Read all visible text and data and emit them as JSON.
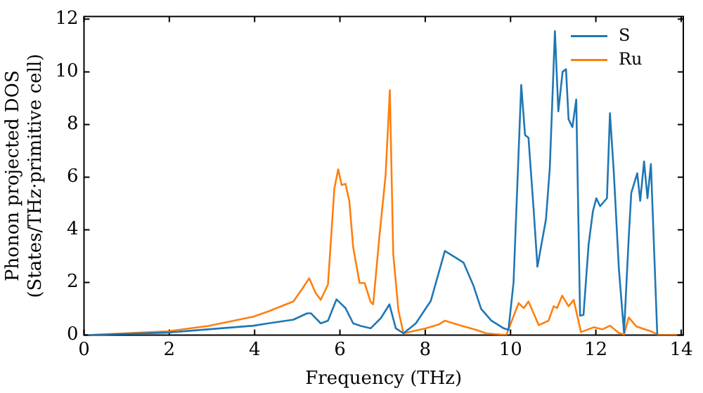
{
  "chart_data": {
    "type": "line",
    "xlabel": "Frequency (THz)",
    "ylabel": "Phonon projected DOS\n(States/THz·primitive cell)",
    "xlim": [
      0,
      14.05
    ],
    "ylim": [
      0,
      12.1
    ],
    "xticks": [
      0,
      2,
      4,
      6,
      8,
      10,
      12,
      14
    ],
    "yticks": [
      0,
      2,
      4,
      6,
      8,
      10,
      12
    ],
    "grid": false,
    "legend": "top right",
    "marker": "none",
    "line_style": "solid",
    "series": [
      {
        "name": "S",
        "color": "#1f77b4",
        "x": [
          0.09,
          1.97,
          3.97,
          4.32,
          4.91,
          5.23,
          5.32,
          5.55,
          5.72,
          5.92,
          6.13,
          6.31,
          6.49,
          6.72,
          6.96,
          7.16,
          7.31,
          7.49,
          7.78,
          8.13,
          8.46,
          8.72,
          8.9,
          9.13,
          9.31,
          9.55,
          9.84,
          9.95,
          10.07,
          10.25,
          10.34,
          10.42,
          10.54,
          10.63,
          10.83,
          10.92,
          11.04,
          11.12,
          11.22,
          11.3,
          11.36,
          11.45,
          11.54,
          11.63,
          11.71,
          11.83,
          11.93,
          12.01,
          12.1,
          12.26,
          12.33,
          12.42,
          12.54,
          12.66,
          12.77,
          12.83,
          12.97,
          13.04,
          13.13,
          13.21,
          13.29,
          13.44
        ],
        "values": [
          0,
          0.1,
          0.36,
          0.45,
          0.59,
          0.83,
          0.83,
          0.45,
          0.55,
          1.36,
          1.03,
          0.45,
          0.35,
          0.26,
          0.65,
          1.17,
          0.26,
          0.07,
          0.45,
          1.3,
          3.2,
          2.94,
          2.75,
          1.88,
          1.0,
          0.55,
          0.26,
          0.2,
          2.0,
          9.5,
          7.6,
          7.5,
          4.8,
          2.6,
          4.4,
          6.35,
          11.55,
          8.5,
          10.0,
          10.1,
          8.2,
          7.9,
          8.95,
          0.74,
          0.77,
          3.45,
          4.7,
          5.2,
          4.9,
          5.2,
          8.43,
          6.2,
          2.5,
          0.1,
          3.7,
          5.4,
          6.15,
          5.1,
          6.6,
          5.2,
          6.5,
          0
        ]
      },
      {
        "name": "Ru",
        "color": "#ff7f0e",
        "x": [
          0.09,
          1.97,
          2.91,
          3.97,
          4.32,
          4.91,
          5.12,
          5.28,
          5.43,
          5.55,
          5.72,
          5.87,
          5.96,
          6.04,
          6.13,
          6.22,
          6.31,
          6.46,
          6.58,
          6.72,
          6.78,
          6.93,
          7.07,
          7.17,
          7.25,
          7.37,
          7.49,
          8.02,
          8.31,
          8.46,
          8.84,
          9.19,
          9.43,
          9.9,
          10.19,
          10.31,
          10.42,
          10.66,
          10.89,
          11.01,
          11.09,
          11.21,
          11.36,
          11.48,
          11.65,
          11.95,
          12.15,
          12.33,
          12.54,
          12.66,
          12.77,
          12.95,
          13.3,
          13.48,
          13.9
        ],
        "values": [
          0,
          0.15,
          0.35,
          0.7,
          0.9,
          1.28,
          1.77,
          2.16,
          1.6,
          1.34,
          1.93,
          5.58,
          6.3,
          5.7,
          5.75,
          5.1,
          3.35,
          1.98,
          1.98,
          1.26,
          1.17,
          3.83,
          6.06,
          9.3,
          3.08,
          0.95,
          0.07,
          0.26,
          0.4,
          0.55,
          0.36,
          0.2,
          0.07,
          0,
          1.22,
          1.03,
          1.28,
          0.38,
          0.55,
          1.1,
          1.03,
          1.5,
          1.1,
          1.34,
          0.12,
          0.3,
          0.22,
          0.36,
          0.08,
          0.02,
          0.67,
          0.33,
          0.14,
          0,
          0
        ]
      }
    ]
  }
}
